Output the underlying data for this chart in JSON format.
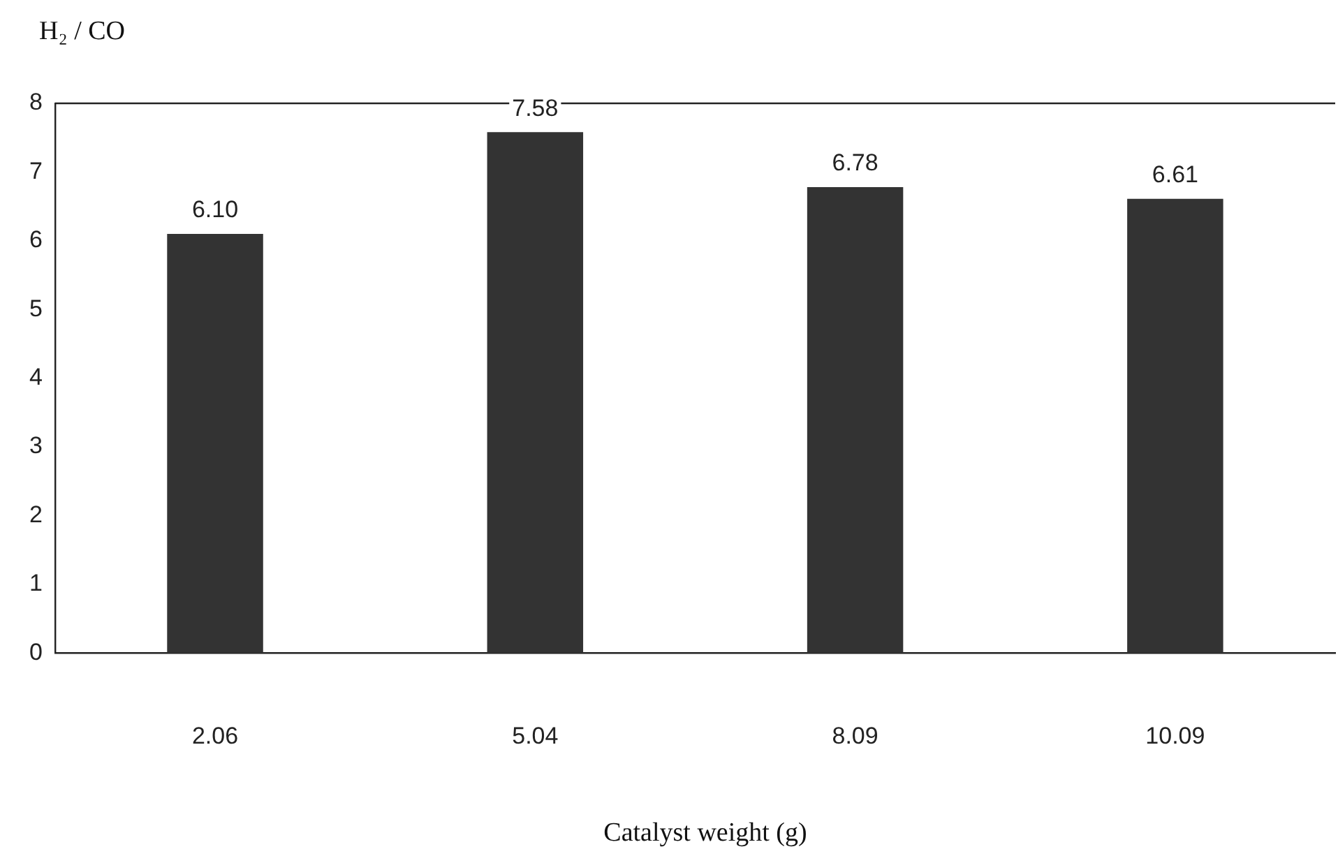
{
  "chart_data": {
    "type": "bar",
    "xlabel": "Catalyst weight (g)",
    "ylabel": "H₂ / CO",
    "categories": [
      "2.06",
      "5.04",
      "8.09",
      "10.09"
    ],
    "values": [
      6.1,
      7.58,
      6.78,
      6.61
    ],
    "value_labels": [
      "6.10",
      "7.58",
      "6.78",
      "6.61"
    ],
    "color": "#333333",
    "ylim": [
      0,
      8
    ],
    "yticks": [
      0,
      1,
      2,
      3,
      4,
      5,
      6,
      7,
      8
    ],
    "grid": false,
    "legend": false
  }
}
